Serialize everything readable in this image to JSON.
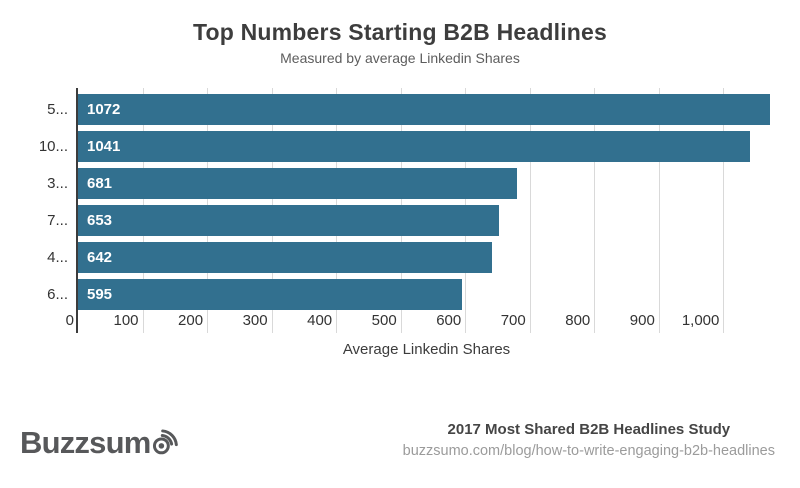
{
  "chart_data": {
    "type": "bar",
    "orientation": "horizontal",
    "title": "Top Numbers Starting B2B Headlines",
    "subtitle": "Measured by average Linkedin Shares",
    "categories": [
      "5...",
      "10...",
      "3...",
      "7...",
      "4...",
      "6..."
    ],
    "values": [
      1072,
      1041,
      681,
      653,
      642,
      595
    ],
    "xlabel": "Average Linkedin Shares",
    "xlim": [
      0,
      1080
    ],
    "xticks": [
      0,
      100,
      200,
      300,
      400,
      500,
      600,
      700,
      800,
      900,
      1000
    ],
    "xtick_labels": [
      "0",
      "100",
      "200",
      "300",
      "400",
      "500",
      "600",
      "700",
      "800",
      "900",
      "1,000"
    ],
    "bar_color": "#32708f",
    "value_label_color": "#ffffff",
    "grid": true,
    "legend": false
  },
  "footer": {
    "logo_text": "Buzzsum",
    "logo_icon": "sonar-o-icon",
    "credit_title": "2017 Most Shared B2B Headlines Study",
    "credit_url": "buzzsumo.com/blog/how-to-write-engaging-b2b-headlines"
  }
}
